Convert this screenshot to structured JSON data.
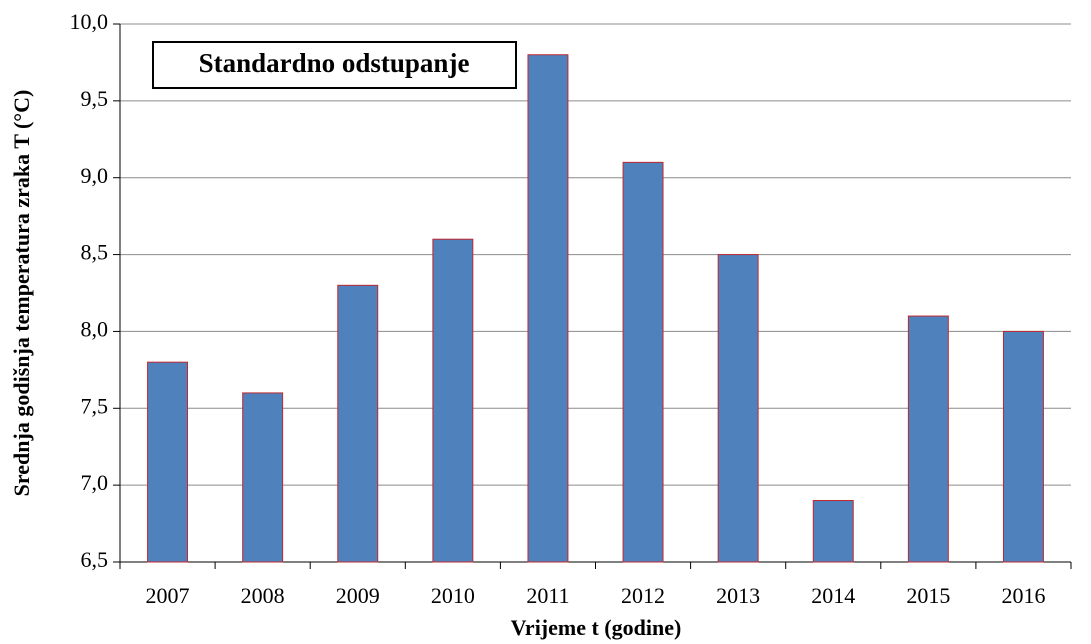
{
  "chart_data": {
    "type": "bar",
    "annotation": "Standardno odstupanje",
    "x_label": "Vrijeme t (godine)",
    "y_label": "Srednja godišnja temperatura zraka T (°C)",
    "categories": [
      "2007",
      "2008",
      "2009",
      "2010",
      "2011",
      "2012",
      "2013",
      "2014",
      "2015",
      "2016"
    ],
    "values": [
      7.8,
      7.6,
      8.3,
      8.6,
      9.8,
      9.1,
      8.5,
      6.9,
      8.1,
      8.0
    ],
    "color": "#4f81bd",
    "edge_color": "#c0282d",
    "ylim": [
      6.5,
      10
    ],
    "yticks": [
      {
        "value": 6.5,
        "label": "6,5"
      },
      {
        "value": 7,
        "label": "7,0"
      },
      {
        "value": 7.5,
        "label": "7,5"
      },
      {
        "value": 8,
        "label": "8,0"
      },
      {
        "value": 8.5,
        "label": "8,5"
      },
      {
        "value": 9,
        "label": "9,0"
      },
      {
        "value": 9.5,
        "label": "9,5"
      },
      {
        "value": 10,
        "label": "10,0"
      }
    ],
    "grid": true
  }
}
